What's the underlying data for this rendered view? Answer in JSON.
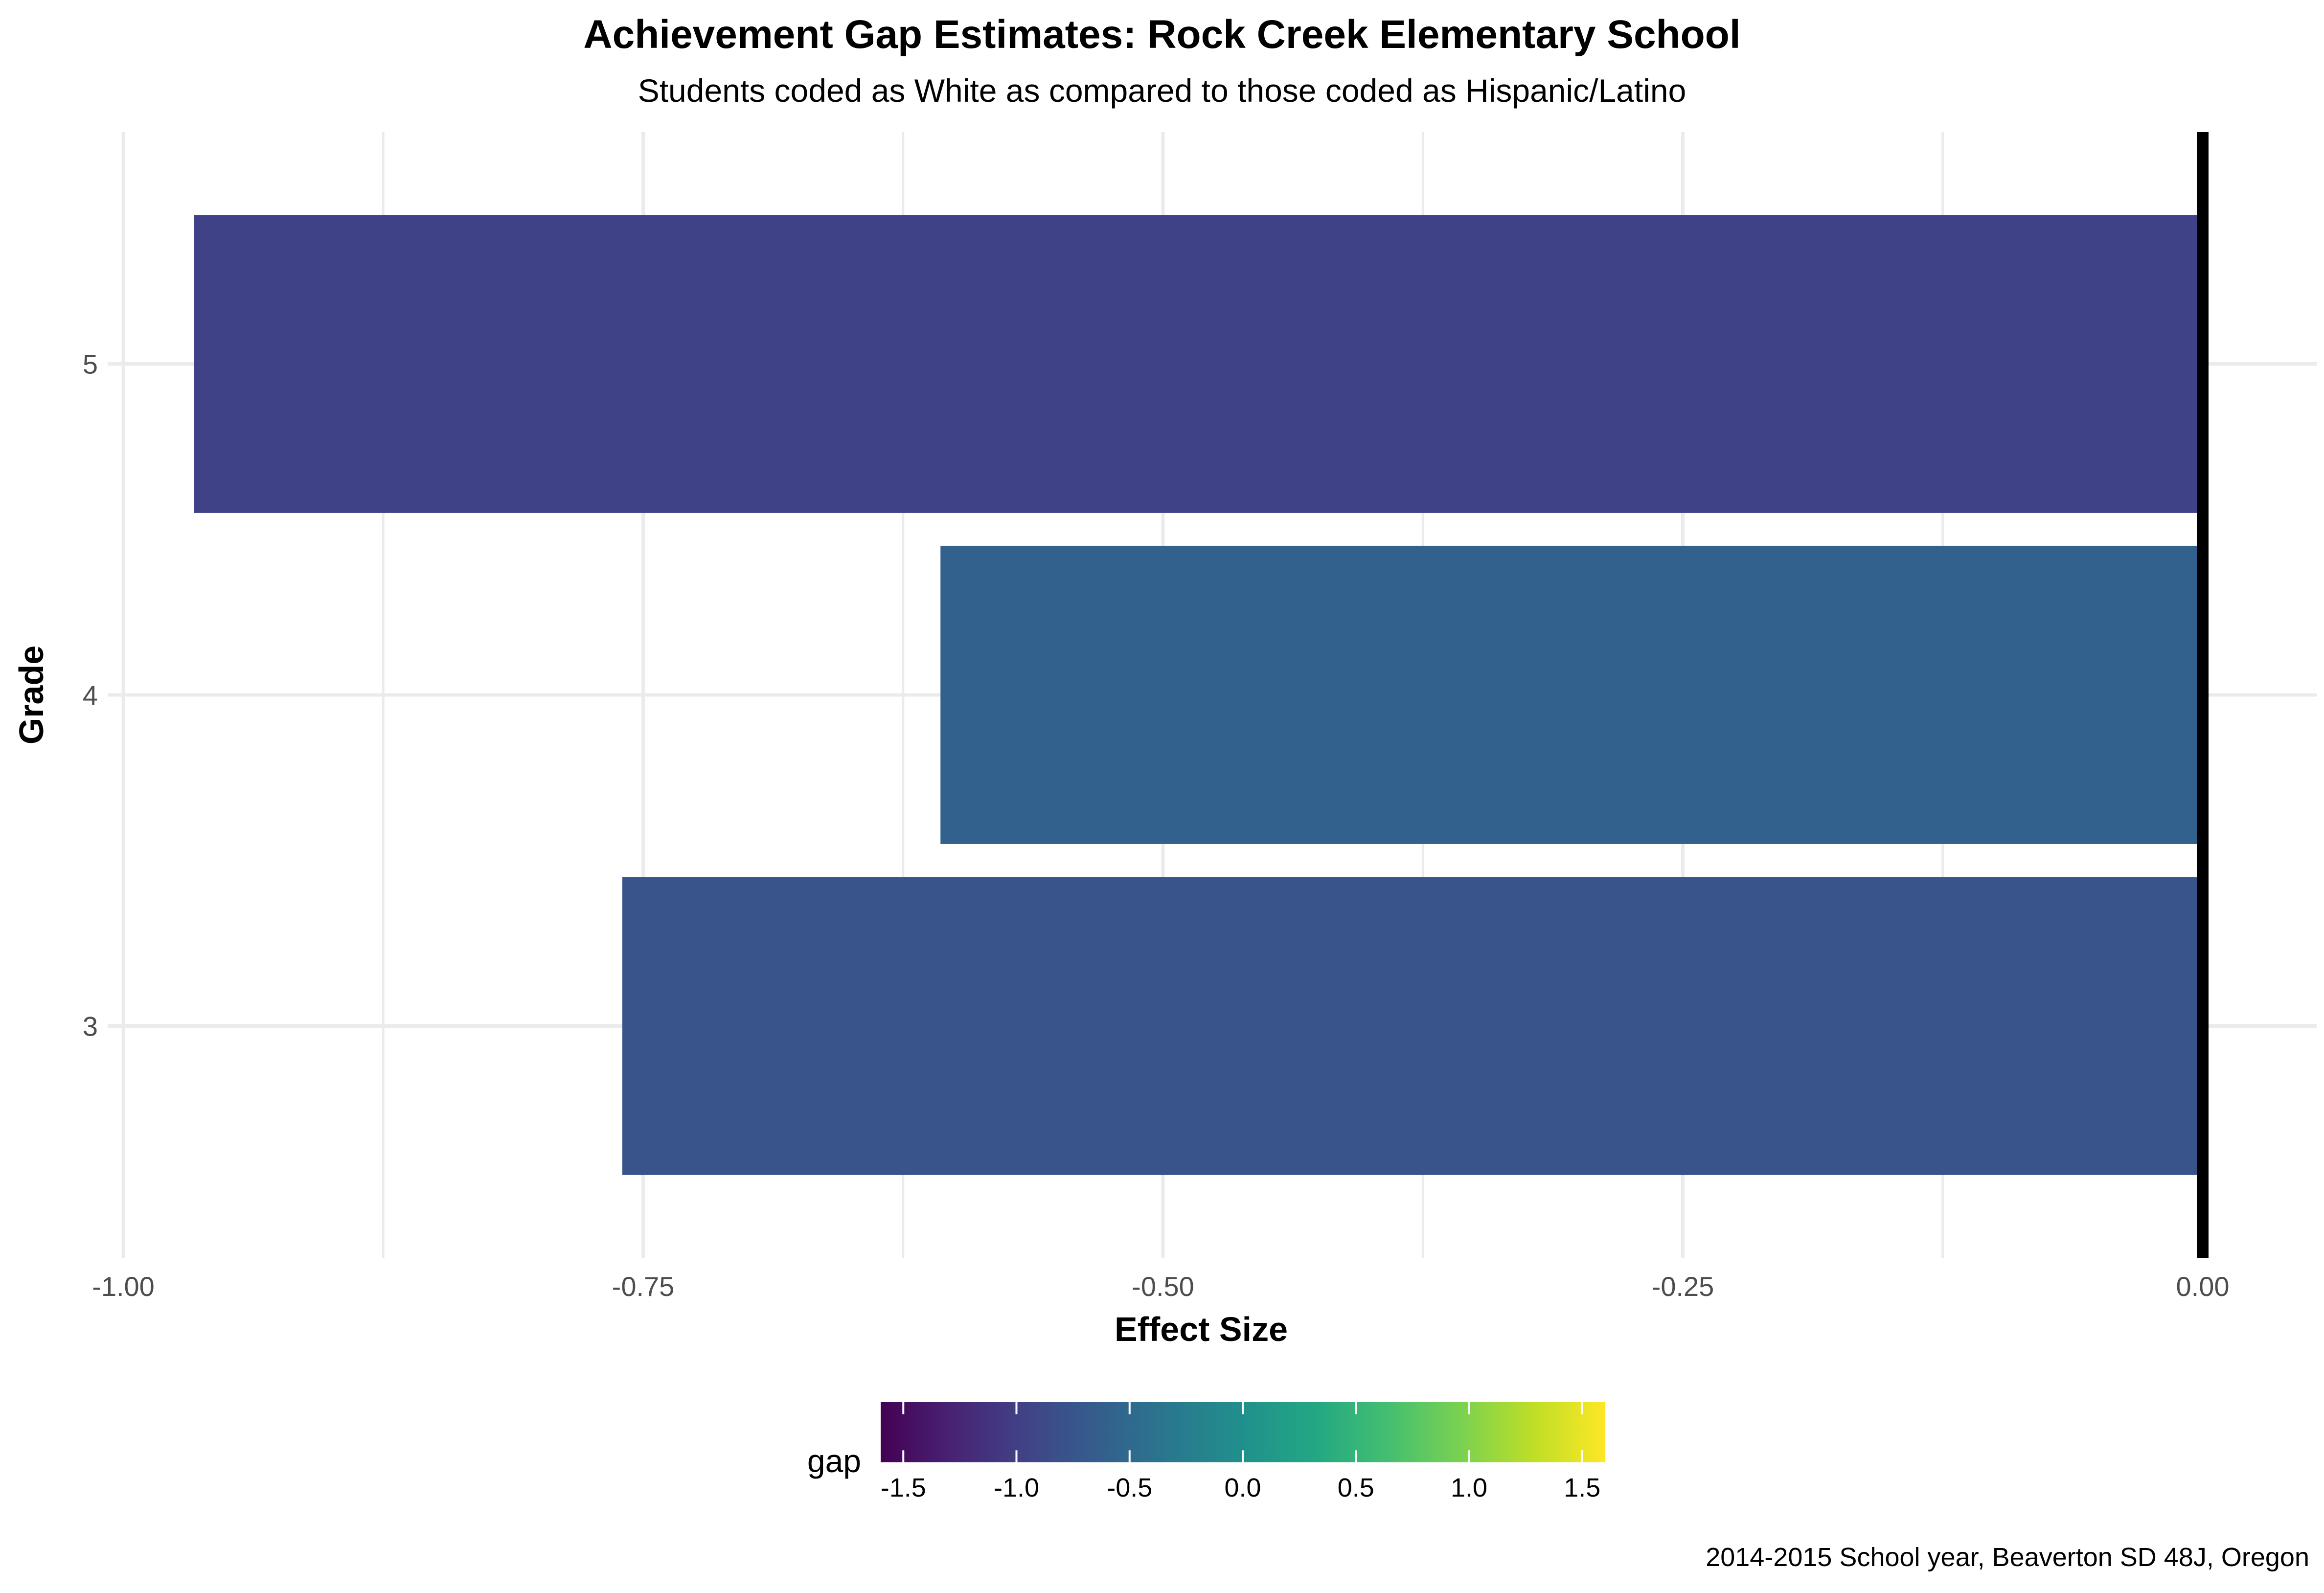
{
  "chart_data": {
    "type": "bar",
    "orientation": "horizontal",
    "title": "Achievement Gap Estimates: Rock Creek Elementary School",
    "subtitle": "Students coded as White as compared to those coded as Hispanic/Latino",
    "xlabel": "Effect Size",
    "ylabel": "Grade",
    "caption": "2014-2015 School year, Beaverton SD 48J, Oregon",
    "categories": [
      "3",
      "4",
      "5"
    ],
    "values": [
      -0.76,
      -0.607,
      -0.966
    ],
    "xlim": [
      -1.0,
      0.0
    ],
    "x_ticks": [
      -1.0,
      -0.75,
      -0.5,
      -0.25,
      0.0
    ],
    "x_tick_labels": [
      "-1.00",
      "-0.75",
      "-0.50",
      "-0.25",
      "0.00"
    ],
    "reference_line": 0.0,
    "grid": true,
    "legend": {
      "title": "gap",
      "type": "colorbar",
      "position": "bottom",
      "palette": "viridis",
      "range": [
        -1.6,
        1.6
      ],
      "ticks": [
        -1.5,
        -1.0,
        -0.5,
        0.0,
        0.5,
        1.0,
        1.5
      ],
      "tick_labels": [
        "-1.5",
        "-1.0",
        "-0.5",
        "0.0",
        "0.5",
        "1.0",
        "1.5"
      ]
    },
    "colors": {
      "grid": "#ebebeb",
      "text": "#000000",
      "axis_text": "#4d4d4d",
      "reference_line": "#000000"
    }
  }
}
